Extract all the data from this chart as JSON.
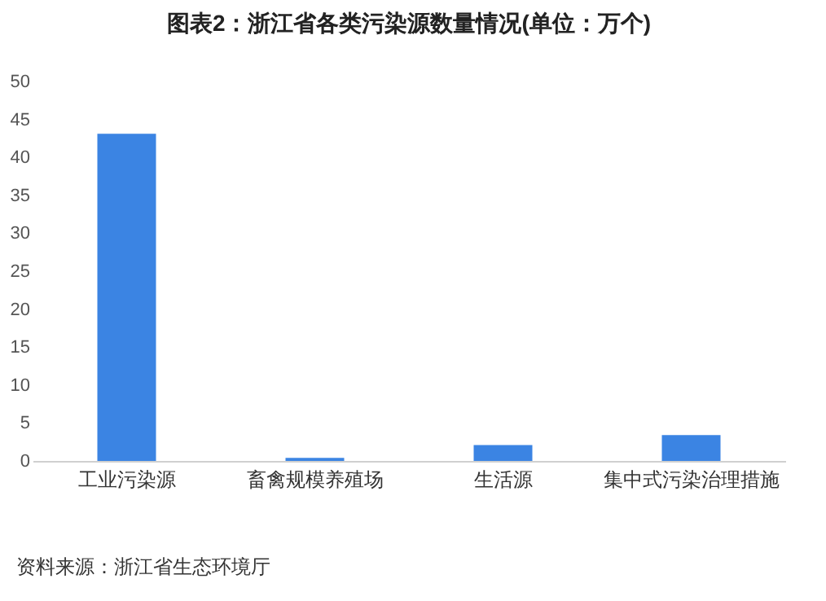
{
  "chart_data": {
    "type": "bar",
    "title": "图表2：浙江省各类污染源数量情况(单位：万个)",
    "categories": [
      "工业污染源",
      "畜禽规模养殖场",
      "生活源",
      "集中式污染治理措施"
    ],
    "values": [
      43.1,
      0.4,
      2.1,
      3.4
    ],
    "color": "#3b84e3",
    "ylim": [
      0,
      50
    ],
    "yticks": [
      0,
      5,
      10,
      15,
      20,
      25,
      30,
      35,
      40,
      45,
      50
    ],
    "grid": false,
    "annotations": [
      "资料来源：浙江省生态环境厅"
    ]
  }
}
